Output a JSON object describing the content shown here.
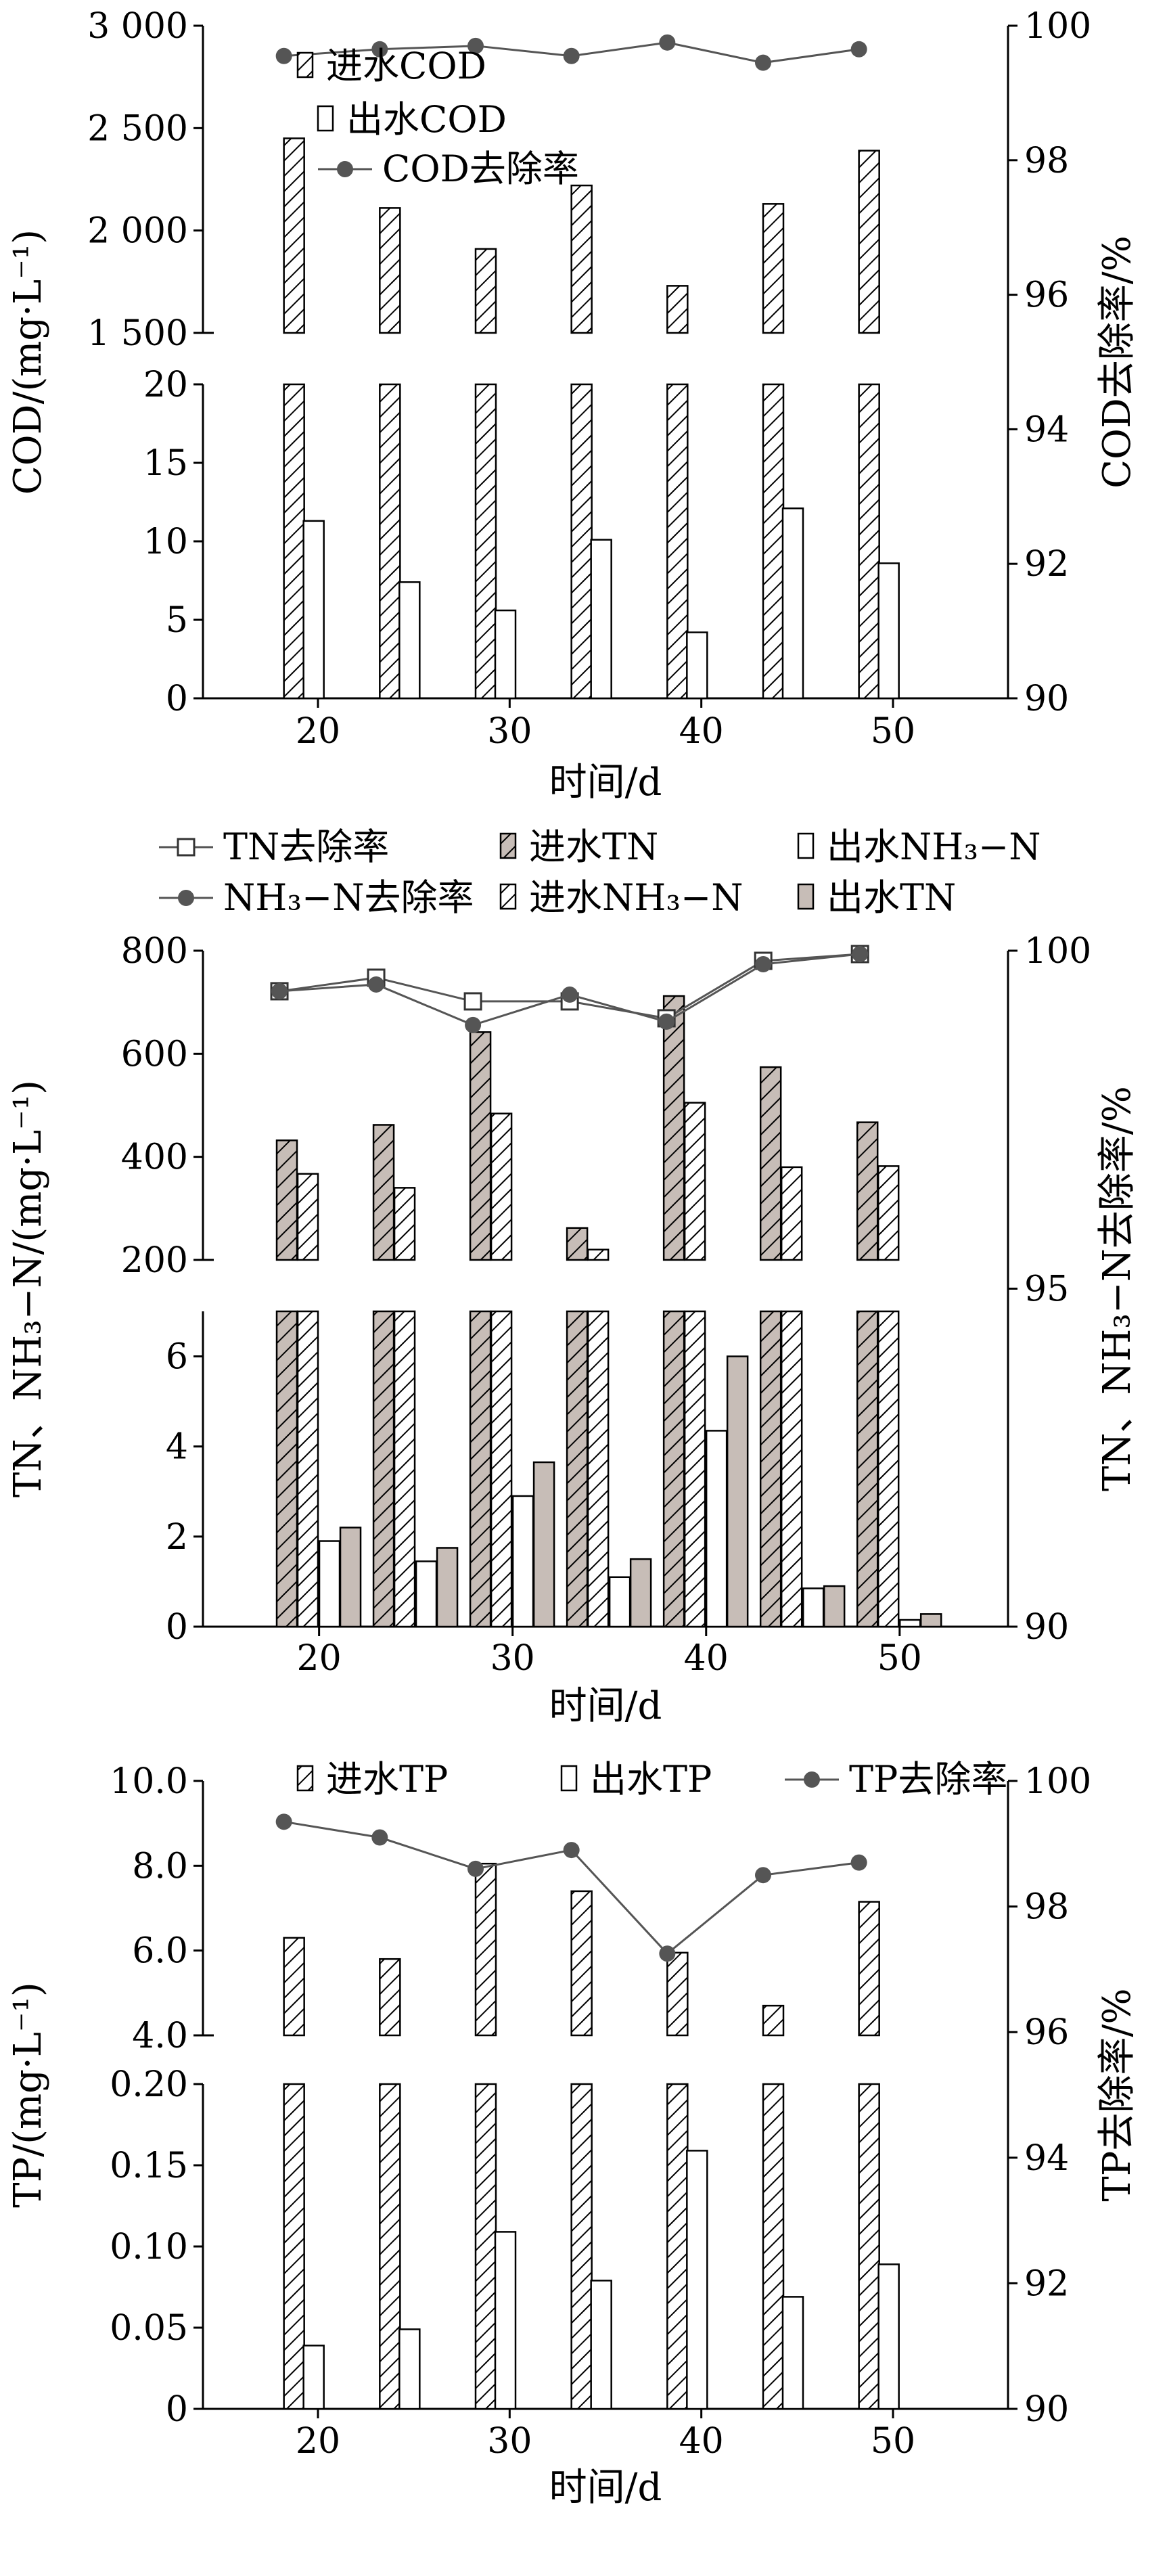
{
  "chart_data": [
    {
      "type": "bar",
      "xlabel": "时间/d",
      "ylabel": "COD/(mg·L⁻¹)",
      "y2label": "COD去除率/%",
      "x_ticks": [
        "20",
        "30",
        "40",
        "50"
      ],
      "x": [
        19,
        24,
        29,
        34,
        39,
        44,
        49
      ],
      "broken_y_axis": {
        "lower": {
          "ylim": [
            0,
            20
          ],
          "ticks": [
            "0",
            "5",
            "10",
            "15",
            "20"
          ]
        },
        "upper": {
          "ylim": [
            1500,
            3000
          ],
          "ticks": [
            "1 500",
            "2 000",
            "2 500",
            "3 000"
          ]
        }
      },
      "y2lim": [
        90,
        100
      ],
      "y2_ticks": [
        "90",
        "92",
        "94",
        "96",
        "98",
        "100"
      ],
      "legend_position": "top-left",
      "series": [
        {
          "name": "进水COD",
          "kind": "bar",
          "pattern": "hatched",
          "values": [
            2450,
            2110,
            1910,
            2220,
            1730,
            2130,
            2390
          ]
        },
        {
          "name": "出水COD",
          "kind": "bar",
          "pattern": "white",
          "values": [
            11.3,
            7.4,
            5.6,
            10.1,
            4.2,
            12.1,
            8.6
          ]
        },
        {
          "name": "COD去除率",
          "kind": "line",
          "axis": "right",
          "values": [
            99.55,
            99.65,
            99.7,
            99.55,
            99.75,
            99.45,
            99.65
          ]
        }
      ]
    },
    {
      "type": "bar",
      "xlabel": "时间/d",
      "ylabel": "TN、NH₃−N/(mg·L⁻¹)",
      "y2label": "TN、NH₃−N去除率/%",
      "x_ticks": [
        "20",
        "30",
        "40",
        "50"
      ],
      "x": [
        19,
        24,
        29,
        34,
        39,
        44,
        49
      ],
      "broken_y_axis": {
        "lower": {
          "ylim": [
            0,
            7
          ],
          "ticks": [
            "0",
            "2",
            "4",
            "6"
          ]
        },
        "upper": {
          "ylim": [
            200,
            800
          ],
          "ticks": [
            "200",
            "400",
            "600",
            "800"
          ]
        }
      },
      "y2lim": [
        90,
        100
      ],
      "y2_ticks": [
        "90",
        "95",
        "100"
      ],
      "legend_position": "top",
      "series": [
        {
          "name": "进水TN",
          "kind": "bar",
          "pattern": "gray-hatched",
          "values": [
            432,
            462,
            642,
            262,
            712,
            574,
            467
          ]
        },
        {
          "name": "进水NH₃−N",
          "kind": "bar",
          "pattern": "hatched",
          "values": [
            367,
            340,
            484,
            220,
            505,
            380,
            382
          ]
        },
        {
          "name": "出水NH₃−N",
          "kind": "bar",
          "pattern": "white",
          "values": [
            1.9,
            1.45,
            2.9,
            1.1,
            4.35,
            0.85,
            0.15
          ]
        },
        {
          "name": "出水TN",
          "kind": "bar",
          "pattern": "gray",
          "values": [
            2.2,
            1.75,
            3.65,
            1.5,
            6.0,
            0.9,
            0.28
          ]
        },
        {
          "name": "TN去除率",
          "kind": "line",
          "axis": "right",
          "marker": "open-square",
          "values": [
            99.4,
            99.6,
            99.25,
            99.25,
            99.0,
            99.85,
            99.95
          ]
        },
        {
          "name": "NH₃−N去除率",
          "kind": "line",
          "axis": "right",
          "marker": "filled-circle",
          "values": [
            99.4,
            99.5,
            98.9,
            99.35,
            98.95,
            99.8,
            99.95
          ]
        }
      ]
    },
    {
      "type": "bar",
      "xlabel": "时间/d",
      "ylabel": "TP/(mg·L⁻¹)",
      "y2label": "TP去除率/%",
      "x_ticks": [
        "20",
        "30",
        "40",
        "50"
      ],
      "x": [
        19,
        24,
        29,
        34,
        39,
        44,
        49
      ],
      "broken_y_axis": {
        "lower": {
          "ylim": [
            0,
            0.2
          ],
          "ticks": [
            "0",
            "0.05",
            "0.10",
            "0.15",
            "0.20"
          ]
        },
        "upper": {
          "ylim": [
            4.0,
            10.0
          ],
          "ticks": [
            "4.0",
            "6.0",
            "8.0",
            "10.0"
          ]
        }
      },
      "y2lim": [
        90,
        100
      ],
      "y2_ticks": [
        "90",
        "92",
        "94",
        "96",
        "98",
        "100"
      ],
      "legend_position": "top",
      "series": [
        {
          "name": "进水TP",
          "kind": "bar",
          "pattern": "hatched",
          "values": [
            6.3,
            5.8,
            8.05,
            7.4,
            5.95,
            4.7,
            7.15
          ]
        },
        {
          "name": "出水TP",
          "kind": "bar",
          "pattern": "white",
          "values": [
            0.039,
            0.049,
            0.109,
            0.079,
            0.159,
            0.069,
            0.089
          ]
        },
        {
          "name": "TP去除率",
          "kind": "line",
          "axis": "right",
          "values": [
            99.35,
            99.1,
            98.6,
            98.9,
            97.25,
            98.5,
            98.7
          ]
        }
      ]
    }
  ]
}
